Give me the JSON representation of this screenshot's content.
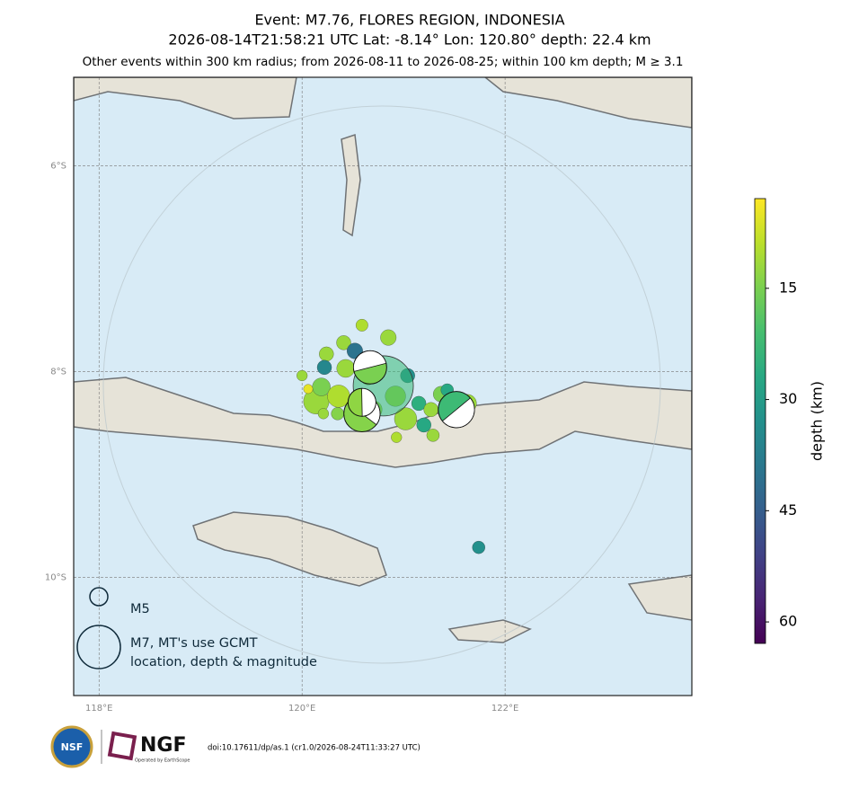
{
  "chart_data": {
    "type": "map",
    "title": "Event: M7.76, FLORES REGION, INDONESIA",
    "subtitle": "2026-08-14T21:58:21 UTC Lat: -8.14° Lon: 120.80° depth: 22.4 km",
    "note": "Other events within 300 km radius; from 2026-08-11 to 2026-08-25; within 100 km depth; M ≥ 3.1",
    "xlim": [
      117.75,
      123.84
    ],
    "ylim": [
      -11.15,
      -5.14
    ],
    "xticks": [
      {
        "value": 118,
        "label": "118°E"
      },
      {
        "value": 120,
        "label": "120°E"
      },
      {
        "value": 122,
        "label": "122°E"
      }
    ],
    "yticks": [
      {
        "value": -6,
        "label": "6°S"
      },
      {
        "value": -8,
        "label": "8°S"
      },
      {
        "value": -10,
        "label": "10°S"
      }
    ],
    "grid": true,
    "colorbar": {
      "label": "depth (km)",
      "lim": [
        2.9,
        62.9
      ],
      "ticks": [
        15,
        30,
        45,
        60
      ],
      "colormap": "viridis_r"
    },
    "mainshock": {
      "lon": 120.8,
      "lat": -8.14,
      "depth": 22.4,
      "mag": 7.76
    },
    "events": [
      {
        "lon": 120.59,
        "lat": -7.55,
        "depth": 10,
        "mag": 4.1
      },
      {
        "lon": 120.85,
        "lat": -7.67,
        "depth": 12,
        "mag": 4.7
      },
      {
        "lon": 120.41,
        "lat": -7.72,
        "depth": 12,
        "mag": 4.5
      },
      {
        "lon": 120.24,
        "lat": -7.83,
        "depth": 12,
        "mag": 4.5
      },
      {
        "lon": 120.22,
        "lat": -7.96,
        "depth": 35,
        "mag": 4.5
      },
      {
        "lon": 120.0,
        "lat": -8.04,
        "depth": 12,
        "mag": 3.8
      },
      {
        "lon": 120.14,
        "lat": -8.29,
        "depth": 12,
        "mag": 5.8
      },
      {
        "lon": 120.19,
        "lat": -8.15,
        "depth": 15,
        "mag": 5.0
      },
      {
        "lon": 120.36,
        "lat": -8.24,
        "depth": 10,
        "mag": 5.5
      },
      {
        "lon": 121.04,
        "lat": -8.04,
        "depth": 33,
        "mag": 4.5
      },
      {
        "lon": 121.02,
        "lat": -8.46,
        "depth": 12,
        "mag": 5.5
      },
      {
        "lon": 121.15,
        "lat": -8.31,
        "depth": 25,
        "mag": 4.5
      },
      {
        "lon": 121.2,
        "lat": -8.52,
        "depth": 27,
        "mag": 4.5
      },
      {
        "lon": 121.29,
        "lat": -8.62,
        "depth": 12,
        "mag": 4.2
      },
      {
        "lon": 120.93,
        "lat": -8.64,
        "depth": 10,
        "mag": 3.8
      },
      {
        "lon": 121.37,
        "lat": -8.22,
        "depth": 15,
        "mag": 4.7
      },
      {
        "lon": 121.43,
        "lat": -8.18,
        "depth": 27,
        "mag": 4.2
      },
      {
        "lon": 121.63,
        "lat": -8.31,
        "depth": 12,
        "mag": 5.0
      },
      {
        "lon": 121.74,
        "lat": -9.71,
        "depth": 33,
        "mag": 4.2
      },
      {
        "lon": 120.43,
        "lat": -7.97,
        "depth": 12,
        "mag": 5.0
      },
      {
        "lon": 120.52,
        "lat": -7.8,
        "depth": 40,
        "mag": 4.7
      },
      {
        "lon": 120.7,
        "lat": -8.37,
        "depth": 12,
        "mag": 5.0
      },
      {
        "lon": 120.92,
        "lat": -8.24,
        "depth": 12,
        "mag": 5.3
      },
      {
        "lon": 120.35,
        "lat": -8.41,
        "depth": 14,
        "mag": 4.2
      },
      {
        "lon": 120.21,
        "lat": -8.41,
        "depth": 12,
        "mag": 3.8
      },
      {
        "lon": 120.06,
        "lat": -8.17,
        "depth": 5,
        "mag": 3.5
      },
      {
        "lon": 121.27,
        "lat": -8.37,
        "depth": 12,
        "mag": 4.5
      },
      {
        "lon": 120.65,
        "lat": -8.06,
        "depth": 12,
        "mag": 4.5
      }
    ],
    "moment_tensors": [
      {
        "lon": 120.67,
        "lat": -7.96,
        "depth": 15,
        "mag": 6.4
      },
      {
        "lon": 120.59,
        "lat": -8.41,
        "depth": 14,
        "mag": 6.6
      },
      {
        "lon": 120.59,
        "lat": -8.3,
        "depth": 13,
        "mag": 6.0
      },
      {
        "lon": 121.52,
        "lat": -8.37,
        "depth": 22,
        "mag": 6.6
      }
    ],
    "legend": [
      {
        "label": "M5",
        "mag": 5
      },
      {
        "label": [
          "M7, MT's use GCMT",
          "location, depth & magnitude"
        ],
        "mag": 7
      }
    ]
  },
  "footer": {
    "doi": "doi:10.17611/dp/as.1 (cr1.0/2026-08-24T11:33:27 UTC)",
    "nsf": "NSF",
    "logo": "NGF",
    "logo_sub": "Operated by EarthScope"
  }
}
